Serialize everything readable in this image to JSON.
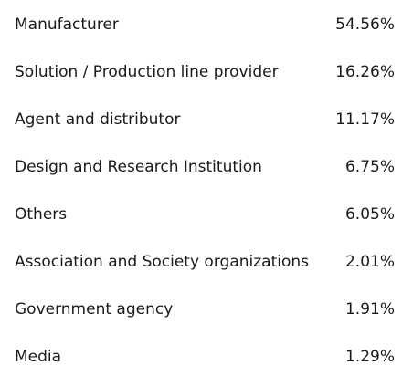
{
  "table": {
    "rows": [
      [
        "Manufacturer",
        "54.56%"
      ],
      [
        "Solution / Production line provider",
        "16.26%"
      ],
      [
        "Agent and distributor",
        "11.17%"
      ],
      [
        "Design and Research Institution",
        "6.75%"
      ],
      [
        "Others",
        "6.05%"
      ],
      [
        "Association and Society organizations",
        "2.01%"
      ],
      [
        "Government agency",
        "1.91%"
      ],
      [
        "Media",
        "1.29%"
      ]
    ]
  }
}
